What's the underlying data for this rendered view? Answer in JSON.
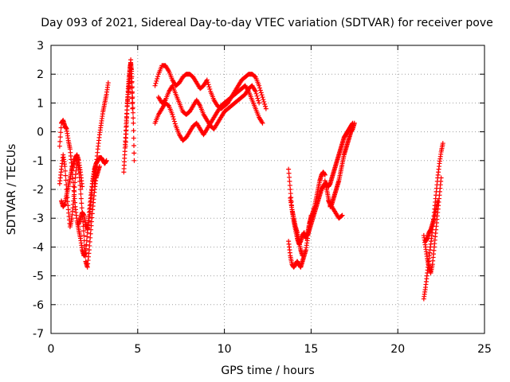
{
  "chart_data": {
    "type": "scatter",
    "title": "Day 093 of 2021, Sidereal Day-to-day VTEC variation (SDTVAR) for receiver pove",
    "xlabel": "GPS time / hours",
    "ylabel": "SDTVAR / TECUs",
    "xlim": [
      0,
      25
    ],
    "ylim": [
      -7,
      3
    ],
    "xticks": [
      "0",
      "5",
      "10",
      "15",
      "20",
      "25"
    ],
    "yticks": [
      "3",
      "2",
      "1",
      "0",
      "-1",
      "-2",
      "-3",
      "-4",
      "-5",
      "-6",
      "-7"
    ],
    "grid": true,
    "marker": "+",
    "series": [
      {
        "name": "SDTVAR",
        "color": "#ff0000",
        "segments": [
          {
            "x": [
              0.5,
              0.6,
              0.7,
              0.8,
              0.9,
              1.0,
              1.1,
              1.2,
              1.3,
              1.4,
              1.5,
              1.6,
              1.7,
              1.8,
              1.9,
              2.0,
              2.1,
              2.2,
              2.3,
              2.4,
              2.5,
              2.6,
              2.7,
              2.8,
              2.9,
              3.0,
              3.1,
              3.2
            ],
            "y": [
              -0.5,
              0.3,
              0.4,
              0.2,
              0.1,
              -0.3,
              -0.6,
              -1.2,
              -1.9,
              -2.6,
              -3.1,
              -3.4,
              -3.7,
              -4.1,
              -4.3,
              -4.2,
              -3.5,
              -2.8,
              -2.2,
              -1.7,
              -1.3,
              -1.1,
              -1.0,
              -0.9,
              -0.9,
              -1.0,
              -1.1,
              -1.0
            ]
          },
          {
            "x": [
              0.5,
              0.6,
              0.7,
              0.8,
              0.9,
              1.0,
              1.1,
              1.2,
              1.3,
              1.4,
              1.5,
              1.6,
              1.7,
              1.8,
              1.9,
              2.0,
              2.1,
              2.2,
              2.3,
              2.4,
              2.5,
              2.6,
              2.7,
              2.8
            ],
            "y": [
              -1.8,
              -1.3,
              -0.8,
              -1.2,
              -2.0,
              -2.7,
              -3.3,
              -3.0,
              -2.4,
              -1.6,
              -1.0,
              -1.3,
              -2.0,
              -2.8,
              -3.6,
              -4.5,
              -4.7,
              -4.1,
              -3.4,
              -2.7,
              -2.1,
              -1.6,
              -1.4,
              -1.2
            ]
          },
          {
            "x": [
              0.6,
              0.7,
              0.8,
              0.9,
              1.0,
              1.1,
              1.2,
              1.3,
              1.4,
              1.5,
              1.6,
              1.7,
              1.8
            ],
            "y": [
              -2.4,
              -2.6,
              -2.5,
              -2.2,
              -1.9,
              -1.6,
              -1.3,
              -1.1,
              -0.9,
              -0.8,
              -1.0,
              -1.4,
              -1.9
            ]
          },
          {
            "x": [
              1.6,
              1.7,
              1.8,
              1.9,
              2.0,
              2.1,
              2.2,
              2.3,
              2.4,
              2.5,
              2.6
            ],
            "y": [
              -3.2,
              -3.0,
              -2.8,
              -2.9,
              -3.2,
              -3.4,
              -3.0,
              -2.4,
              -1.8,
              -1.4,
              -1.2
            ]
          },
          {
            "x": [
              2.5,
              2.6,
              2.7,
              2.8,
              2.9,
              3.0,
              3.1,
              3.2,
              3.3
            ],
            "y": [
              -1.8,
              -1.2,
              -0.6,
              -0.1,
              0.3,
              0.7,
              1.0,
              1.3,
              1.7
            ]
          },
          {
            "x": [
              4.2,
              4.25,
              4.3,
              4.35,
              4.4,
              4.45,
              4.5,
              4.55,
              4.6,
              4.65,
              4.7,
              4.75,
              4.8
            ],
            "y": [
              -1.4,
              -0.8,
              -0.2,
              0.4,
              1.0,
              1.5,
              1.9,
              2.2,
              2.4,
              2.1,
              1.2,
              0.3,
              -1.0
            ]
          },
          {
            "x": [
              4.3,
              4.35,
              4.4,
              4.45,
              4.5,
              4.55,
              4.6,
              4.65,
              4.7
            ],
            "y": [
              -0.5,
              0.2,
              0.9,
              1.3,
              1.6,
              2.0,
              2.5,
              1.7,
              0.8
            ]
          },
          {
            "x": [
              6.0,
              6.2,
              6.4,
              6.6,
              6.8,
              7.0,
              7.2,
              7.4,
              7.6,
              7.8,
              8.0,
              8.2,
              8.4,
              8.6,
              8.8,
              9.0,
              9.2,
              9.4,
              9.6,
              9.8,
              10.0,
              10.2,
              10.4,
              10.6,
              10.8,
              11.0,
              11.2,
              11.4,
              11.6,
              11.8,
              12.0,
              12.2,
              12.4
            ],
            "y": [
              1.6,
              2.0,
              2.3,
              2.3,
              2.1,
              1.8,
              1.6,
              1.7,
              1.9,
              2.0,
              2.0,
              1.9,
              1.7,
              1.5,
              1.6,
              1.8,
              1.4,
              1.1,
              0.9,
              0.8,
              0.9,
              1.0,
              1.2,
              1.4,
              1.6,
              1.8,
              1.9,
              2.0,
              2.0,
              1.9,
              1.6,
              1.2,
              0.8
            ]
          },
          {
            "x": [
              6.0,
              6.2,
              6.4,
              6.6,
              6.8,
              7.0,
              7.2,
              7.4,
              7.6,
              7.8,
              8.0,
              8.2,
              8.4,
              8.6,
              8.8,
              9.0,
              9.2,
              9.4,
              9.6,
              9.8,
              10.0,
              10.2,
              10.4,
              10.6,
              10.8,
              11.0,
              11.2,
              11.4,
              11.6,
              11.8,
              12.0,
              12.2
            ],
            "y": [
              0.3,
              0.6,
              0.8,
              1.0,
              0.9,
              0.6,
              0.2,
              -0.1,
              -0.3,
              -0.2,
              0.0,
              0.2,
              0.3,
              0.1,
              -0.1,
              0.1,
              0.3,
              0.5,
              0.7,
              0.9,
              1.0,
              1.1,
              1.2,
              1.3,
              1.4,
              1.5,
              1.6,
              1.4,
              1.1,
              0.8,
              0.5,
              0.3
            ]
          },
          {
            "x": [
              6.2,
              6.4,
              6.6,
              6.8,
              7.0,
              7.2,
              7.4,
              7.6,
              7.8,
              8.0,
              8.2,
              8.4,
              8.6,
              8.8,
              9.0,
              9.2,
              9.4,
              9.6,
              9.8,
              10.0,
              10.2,
              10.4,
              10.6,
              10.8,
              11.0,
              11.2,
              11.4,
              11.6,
              11.8,
              12.0
            ],
            "y": [
              1.2,
              1.0,
              1.1,
              1.4,
              1.6,
              1.3,
              1.0,
              0.7,
              0.6,
              0.7,
              0.9,
              1.1,
              0.9,
              0.6,
              0.4,
              0.2,
              0.1,
              0.3,
              0.5,
              0.7,
              0.8,
              0.9,
              1.0,
              1.1,
              1.2,
              1.3,
              1.5,
              1.6,
              1.4,
              1.0
            ]
          },
          {
            "x": [
              13.7,
              13.8,
              13.9,
              14.0,
              14.1,
              14.2,
              14.3,
              14.4,
              14.5,
              14.6,
              14.7,
              14.8,
              14.9,
              15.0,
              15.1,
              15.2,
              15.3,
              15.4,
              15.5,
              15.6,
              15.7,
              15.8
            ],
            "y": [
              -1.3,
              -2.0,
              -2.7,
              -3.1,
              -3.4,
              -3.7,
              -3.9,
              -3.8,
              -3.6,
              -3.5,
              -3.7,
              -3.5,
              -3.2,
              -3.0,
              -2.8,
              -2.6,
              -2.3,
              -2.0,
              -1.7,
              -1.5,
              -1.4,
              -1.5
            ]
          },
          {
            "x": [
              13.7,
              13.8,
              13.9,
              14.0,
              14.1,
              14.2,
              14.3,
              14.4,
              14.5,
              14.6,
              14.7,
              14.8,
              14.9,
              15.0
            ],
            "y": [
              -3.8,
              -4.3,
              -4.6,
              -4.7,
              -4.6,
              -4.5,
              -4.6,
              -4.7,
              -4.5,
              -4.3,
              -4.1,
              -3.7,
              -3.2,
              -2.9
            ]
          },
          {
            "x": [
              13.8,
              13.9,
              14.0,
              14.1,
              14.2,
              14.3,
              14.4,
              14.5
            ],
            "y": [
              -2.3,
              -2.7,
              -3.0,
              -3.3,
              -3.5,
              -3.8,
              -4.1,
              -4.3
            ]
          },
          {
            "x": [
              15.8,
              15.9,
              16.0,
              16.1,
              16.2,
              16.3,
              16.4,
              16.5,
              16.6,
              16.7,
              16.8,
              16.9,
              17.0,
              17.1,
              17.2,
              17.3,
              17.4,
              17.5
            ],
            "y": [
              -1.7,
              -2.0,
              -2.3,
              -2.6,
              -2.5,
              -2.3,
              -2.1,
              -1.9,
              -1.7,
              -1.4,
              -1.1,
              -0.8,
              -0.6,
              -0.4,
              -0.2,
              0.0,
              0.1,
              0.3
            ]
          },
          {
            "x": [
              14.8,
              14.9,
              15.0,
              15.1,
              15.2,
              15.3,
              15.4,
              15.5,
              15.6,
              15.7,
              15.8,
              15.9,
              16.0,
              16.1,
              16.2,
              16.3,
              16.4,
              16.5,
              16.6,
              16.7,
              16.8,
              16.9,
              17.0,
              17.1,
              17.2,
              17.3,
              17.4
            ],
            "y": [
              -3.6,
              -3.4,
              -3.2,
              -3.0,
              -2.8,
              -2.6,
              -2.4,
              -2.2,
              -2.0,
              -1.9,
              -1.8,
              -1.8,
              -1.9,
              -1.8,
              -1.6,
              -1.4,
              -1.2,
              -1.0,
              -0.8,
              -0.6,
              -0.4,
              -0.2,
              -0.1,
              0.0,
              0.1,
              0.2,
              0.3
            ]
          },
          {
            "x": [
              16.0,
              16.2,
              16.4,
              16.6,
              16.8
            ],
            "y": [
              -2.4,
              -2.6,
              -2.8,
              -3.0,
              -2.9
            ]
          },
          {
            "x": [
              21.5,
              21.6,
              21.7,
              21.8,
              21.9,
              22.0,
              22.1,
              22.2,
              22.3,
              22.4,
              22.5,
              22.6
            ],
            "y": [
              -5.8,
              -5.4,
              -4.9,
              -4.4,
              -3.9,
              -3.4,
              -2.8,
              -2.2,
              -1.6,
              -1.1,
              -0.7,
              -0.4
            ]
          },
          {
            "x": [
              21.5,
              21.6,
              21.7,
              21.8,
              21.9,
              22.0,
              22.1,
              22.2,
              22.3,
              22.4,
              22.5
            ],
            "y": [
              -3.6,
              -4.0,
              -4.4,
              -4.7,
              -4.9,
              -4.6,
              -4.0,
              -3.4,
              -2.8,
              -2.2,
              -1.6
            ]
          },
          {
            "x": [
              21.6,
              21.7,
              21.8,
              21.9,
              22.0,
              22.1,
              22.2,
              22.3
            ],
            "y": [
              -3.8,
              -3.7,
              -3.5,
              -3.4,
              -3.2,
              -3.0,
              -2.7,
              -2.4
            ]
          }
        ]
      }
    ]
  }
}
